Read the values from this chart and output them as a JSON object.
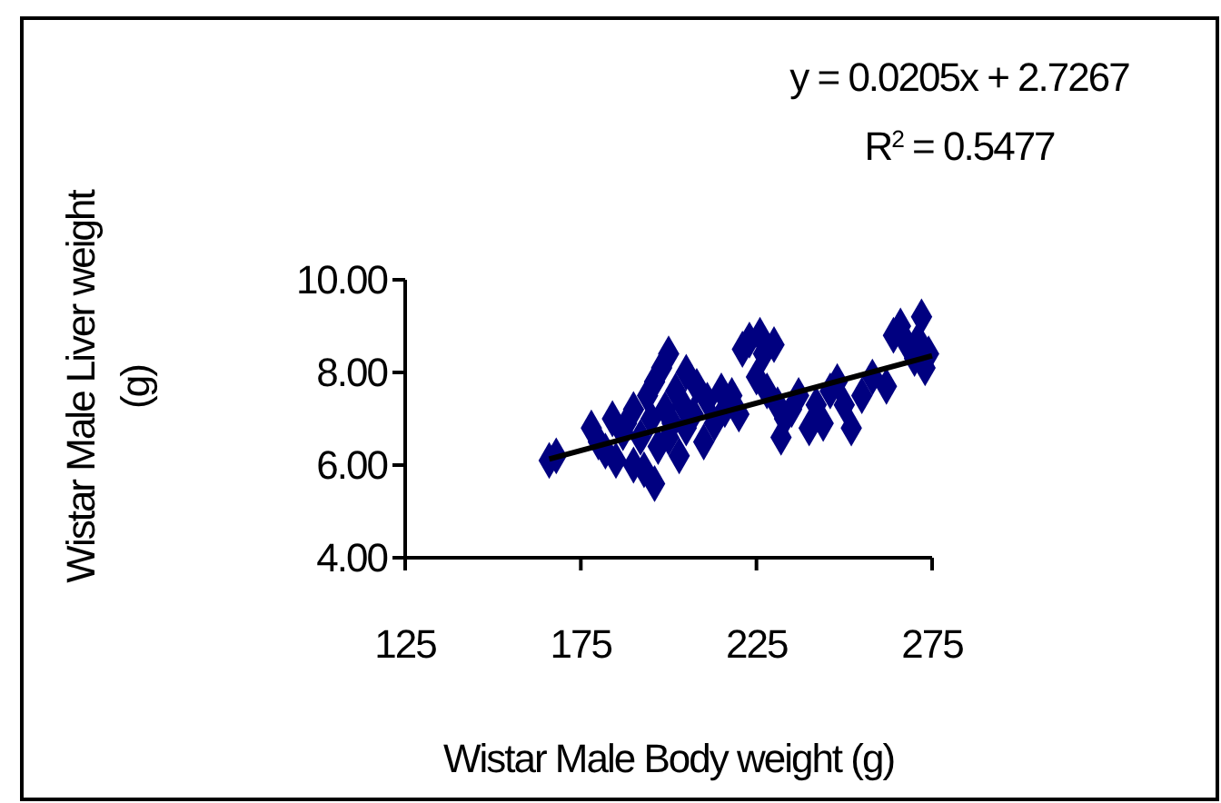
{
  "chart_data": {
    "type": "scatter",
    "xlabel": "Wistar Male Body weight (g)",
    "ylabel": "Wistar Male Liver weight (g)",
    "annotations": [
      "y = 0.0205x + 2.7267",
      "R$^{2}$ = 0.5477"
    ],
    "xlim": [
      125,
      275
    ],
    "xticks": [
      125,
      175,
      225,
      275
    ],
    "ylim": [
      4,
      10
    ],
    "yticks": [
      {
        "value": 4,
        "label": "4.00"
      },
      {
        "value": 6,
        "label": "6.00"
      },
      {
        "value": 8,
        "label": "8.00"
      },
      {
        "value": 10,
        "label": "10.00"
      }
    ],
    "grid": false,
    "marker": "diamond",
    "series": [
      {
        "color": "#000080",
        "x": [
          166,
          168,
          178,
          180,
          182,
          184,
          185,
          187,
          188,
          190,
          190,
          192,
          193,
          194,
          195,
          196,
          196,
          197,
          198,
          199,
          200,
          200,
          201,
          202,
          203,
          204,
          205,
          205,
          207,
          208,
          210,
          211,
          213,
          215,
          216,
          218,
          220,
          221,
          223,
          225,
          226,
          227,
          228,
          230,
          231,
          232,
          233,
          235,
          237,
          240,
          242,
          244,
          246,
          248,
          250,
          252,
          255,
          258,
          262,
          264,
          266,
          268,
          270,
          271,
          272,
          273,
          274
        ],
        "values": [
          6.1,
          6.2,
          6.8,
          6.5,
          6.3,
          7.0,
          6.1,
          6.7,
          6.9,
          6.0,
          7.2,
          6.6,
          5.9,
          7.5,
          7.0,
          5.6,
          7.8,
          6.4,
          8.1,
          7.2,
          6.6,
          8.4,
          6.9,
          7.6,
          6.2,
          7.3,
          8.0,
          6.8,
          7.1,
          7.7,
          6.5,
          7.4,
          6.9,
          7.6,
          7.2,
          7.5,
          7.1,
          8.5,
          8.7,
          7.9,
          8.8,
          8.4,
          7.6,
          8.6,
          7.3,
          6.6,
          7.0,
          7.2,
          7.5,
          6.8,
          7.3,
          6.9,
          7.6,
          7.8,
          7.3,
          6.8,
          7.5,
          7.9,
          7.7,
          8.8,
          9.0,
          8.6,
          8.3,
          8.7,
          9.2,
          8.1,
          8.4
        ]
      },
      {
        "type": "line",
        "color": "#000000",
        "x": [
          166,
          275
        ],
        "values": [
          6.13,
          8.36
        ],
        "marker": "none"
      }
    ]
  }
}
